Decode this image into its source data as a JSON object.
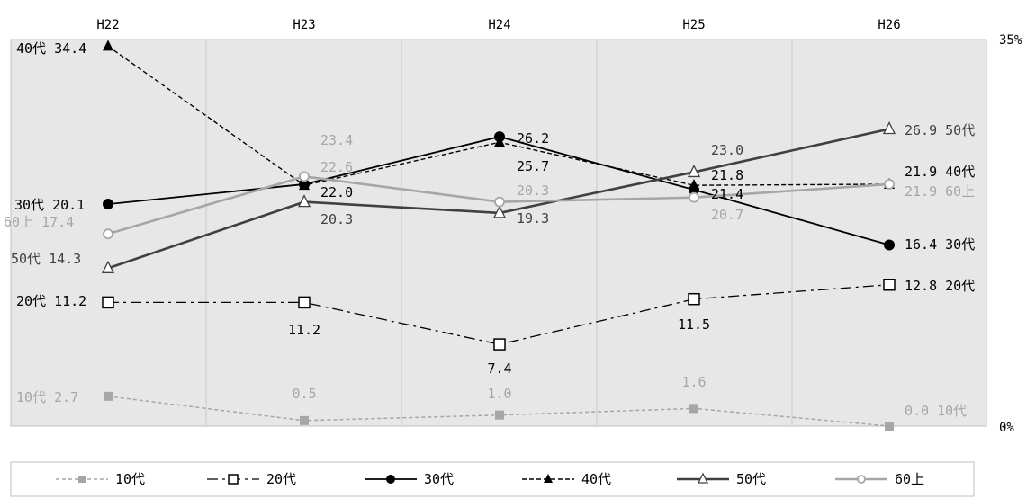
{
  "chart_data": {
    "type": "line",
    "categories": [
      "H22",
      "H23",
      "H24",
      "H25",
      "H26"
    ],
    "ylim": [
      0,
      35
    ],
    "y_ticks": [
      "35%",
      "0%"
    ],
    "grid": true,
    "legend_position": "bottom",
    "series": [
      {
        "name": "10代",
        "values": [
          2.7,
          0.5,
          1.0,
          1.6,
          0.0
        ],
        "labels": [
          "10代 2.7",
          "0.5",
          "1.0",
          "1.6",
          "0.0 10代"
        ],
        "color": "#a6a6a6",
        "dash": "4 3",
        "marker": "square-filled",
        "stroke_width": 1.5
      },
      {
        "name": "20代",
        "values": [
          11.2,
          11.2,
          7.4,
          11.5,
          12.8
        ],
        "labels": [
          "20代 11.2",
          "11.2",
          "7.4",
          "11.5",
          "12.8 20代"
        ],
        "color": "#000000",
        "dash": "12 5 3 5",
        "marker": "square-open",
        "stroke_width": 1.3
      },
      {
        "name": "30代",
        "values": [
          20.1,
          21.9,
          26.2,
          21.4,
          16.4
        ],
        "labels": [
          "30代 20.1",
          "",
          "26.2",
          "21.4",
          "16.4 30代"
        ],
        "color": "#000000",
        "dash": "",
        "marker": "circle-filled",
        "stroke_width": 1.8
      },
      {
        "name": "40代",
        "values": [
          34.4,
          21.8,
          25.7,
          21.8,
          21.9
        ],
        "labels": [
          "40代 34.4",
          "",
          "25.7",
          "21.8",
          "21.9 40代"
        ],
        "color": "#000000",
        "dash": "5 3",
        "marker": "triangle-filled",
        "stroke_width": 1.4
      },
      {
        "name": "50代",
        "values": [
          14.3,
          20.3,
          19.3,
          23.0,
          26.9
        ],
        "labels": [
          "50代 14.3",
          "20.3",
          "19.3",
          "23.0",
          "26.9 50代"
        ],
        "color": "#404040",
        "dash": "",
        "marker": "triangle-open",
        "stroke_width": 2.6
      },
      {
        "name": "60上",
        "values": [
          17.4,
          22.6,
          20.3,
          20.7,
          21.9
        ],
        "labels": [
          "60上 17.4",
          "22.6",
          "20.3",
          "20.7",
          "21.9 60上"
        ],
        "color": "#a6a6a6",
        "dash": "",
        "marker": "circle-open",
        "stroke_width": 2.6
      }
    ],
    "extra_labels": [
      {
        "text": "23.4",
        "x": "H23",
        "value": 23.4,
        "color": "#a6a6a6"
      },
      {
        "text": "22.0",
        "x": "H23",
        "value": 22.0,
        "color": "#000000"
      }
    ]
  }
}
